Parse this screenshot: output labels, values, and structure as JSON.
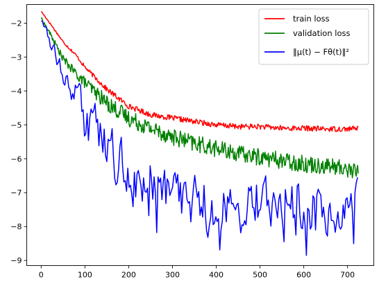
{
  "chart_data": {
    "type": "line",
    "title": "",
    "xlabel": "",
    "ylabel": "",
    "xlim": [
      -33,
      760
    ],
    "ylim": [
      -9.15,
      -1.45
    ],
    "xticks": [
      0,
      100,
      200,
      300,
      400,
      500,
      600,
      700
    ],
    "yticks": [
      -2,
      -3,
      -4,
      -5,
      -6,
      -7,
      -8,
      -9
    ],
    "xtick_labels": [
      "0",
      "100",
      "200",
      "300",
      "400",
      "500",
      "600",
      "700"
    ],
    "ytick_labels": [
      "−2",
      "−3",
      "−4",
      "−5",
      "−6",
      "−7",
      "−8",
      "−9"
    ],
    "grid": false,
    "legend_position": "top-right",
    "series": [
      {
        "name": "train loss",
        "color": "#ff0000",
        "x": [
          0,
          20,
          50,
          80,
          100,
          150,
          200,
          250,
          300,
          350,
          400,
          450,
          500,
          550,
          600,
          650,
          700,
          725
        ],
        "y": [
          -1.65,
          -2.0,
          -2.55,
          -2.95,
          -3.3,
          -3.95,
          -4.45,
          -4.7,
          -4.8,
          -4.9,
          -5.0,
          -5.05,
          -5.05,
          -5.1,
          -5.1,
          -5.12,
          -5.12,
          -5.1
        ],
        "noise": 0.08
      },
      {
        "name": "validation loss",
        "color": "#008000",
        "x": [
          0,
          20,
          50,
          80,
          100,
          150,
          200,
          250,
          300,
          350,
          400,
          450,
          500,
          550,
          600,
          650,
          700,
          725
        ],
        "y": [
          -1.85,
          -2.3,
          -3.05,
          -3.5,
          -3.75,
          -4.35,
          -4.8,
          -5.1,
          -5.35,
          -5.55,
          -5.7,
          -5.85,
          -5.95,
          -6.05,
          -6.15,
          -6.2,
          -6.3,
          -6.4
        ],
        "noise": 0.25
      },
      {
        "name": "‖μ(t) − Fθ(t)‖²",
        "color": "#0000ff",
        "x": [
          0,
          20,
          50,
          80,
          100,
          120,
          150,
          180,
          200,
          250,
          300,
          350,
          400,
          450,
          500,
          550,
          600,
          650,
          700,
          725
        ],
        "y": [
          -1.9,
          -2.5,
          -3.4,
          -4.1,
          -4.65,
          -5.0,
          -5.6,
          -6.2,
          -6.5,
          -6.9,
          -7.1,
          -7.3,
          -7.4,
          -7.4,
          -7.4,
          -7.4,
          -7.4,
          -7.4,
          -7.4,
          -7.4
        ],
        "noise": 0.65
      }
    ]
  }
}
